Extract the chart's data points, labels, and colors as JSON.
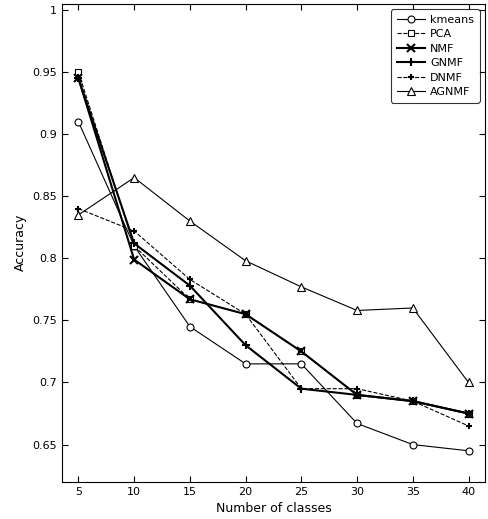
{
  "x": [
    5,
    10,
    15,
    20,
    25,
    30,
    35,
    40
  ],
  "kmeans": [
    0.91,
    0.81,
    0.745,
    0.715,
    0.715,
    0.667,
    0.65,
    0.645
  ],
  "PCA": [
    0.95,
    0.81,
    0.767,
    0.755,
    0.725,
    0.69,
    0.685,
    0.675
  ],
  "NMF": [
    0.945,
    0.799,
    0.767,
    0.755,
    0.725,
    0.69,
    0.685,
    0.675
  ],
  "GNMF": [
    0.945,
    0.812,
    0.778,
    0.73,
    0.695,
    0.69,
    0.685,
    0.675
  ],
  "DNMF": [
    0.84,
    0.822,
    0.783,
    0.755,
    0.695,
    0.695,
    0.685,
    0.665
  ],
  "AGNMF": [
    0.835,
    0.865,
    0.83,
    0.798,
    0.777,
    0.758,
    0.76,
    0.7
  ],
  "series": [
    {
      "key": "kmeans",
      "color": "black",
      "linestyle": "-",
      "marker": "o",
      "linewidth": 0.8,
      "markersize": 5,
      "mfc": "white",
      "dashes": null
    },
    {
      "key": "PCA",
      "color": "black",
      "linestyle": "--",
      "marker": "s",
      "linewidth": 0.8,
      "markersize": 5,
      "mfc": "white",
      "dashes": [
        4,
        2
      ]
    },
    {
      "key": "NMF",
      "color": "black",
      "linestyle": "-",
      "marker": "x",
      "linewidth": 1.5,
      "markersize": 6,
      "mfc": "black",
      "dashes": null
    },
    {
      "key": "GNMF",
      "color": "black",
      "linestyle": "-",
      "marker": "P",
      "linewidth": 1.5,
      "markersize": 6,
      "mfc": "black",
      "dashes": null
    },
    {
      "key": "DNMF",
      "color": "black",
      "linestyle": "--",
      "marker": "P",
      "linewidth": 0.8,
      "markersize": 5,
      "mfc": "white",
      "dashes": [
        4,
        2
      ]
    },
    {
      "key": "AGNMF",
      "color": "black",
      "linestyle": "-",
      "marker": "^",
      "linewidth": 0.8,
      "markersize": 6,
      "mfc": "white",
      "dashes": null
    }
  ],
  "xlabel": "Number of classes",
  "ylabel": "Accuracy",
  "ylim": [
    0.62,
    1.005
  ],
  "xlim": [
    3.5,
    41.5
  ],
  "yticks": [
    0.65,
    0.7,
    0.75,
    0.8,
    0.85,
    0.9,
    0.95,
    1.0
  ],
  "xticks": [
    5,
    10,
    15,
    20,
    25,
    30,
    35,
    40
  ],
  "legend_labels": [
    "kmeans",
    "PCA",
    "NMF",
    "GNMF",
    "DNMF",
    "AGNMF"
  ],
  "legend_loc": "upper right",
  "figsize": [
    4.89,
    5.19
  ],
  "dpi": 100
}
